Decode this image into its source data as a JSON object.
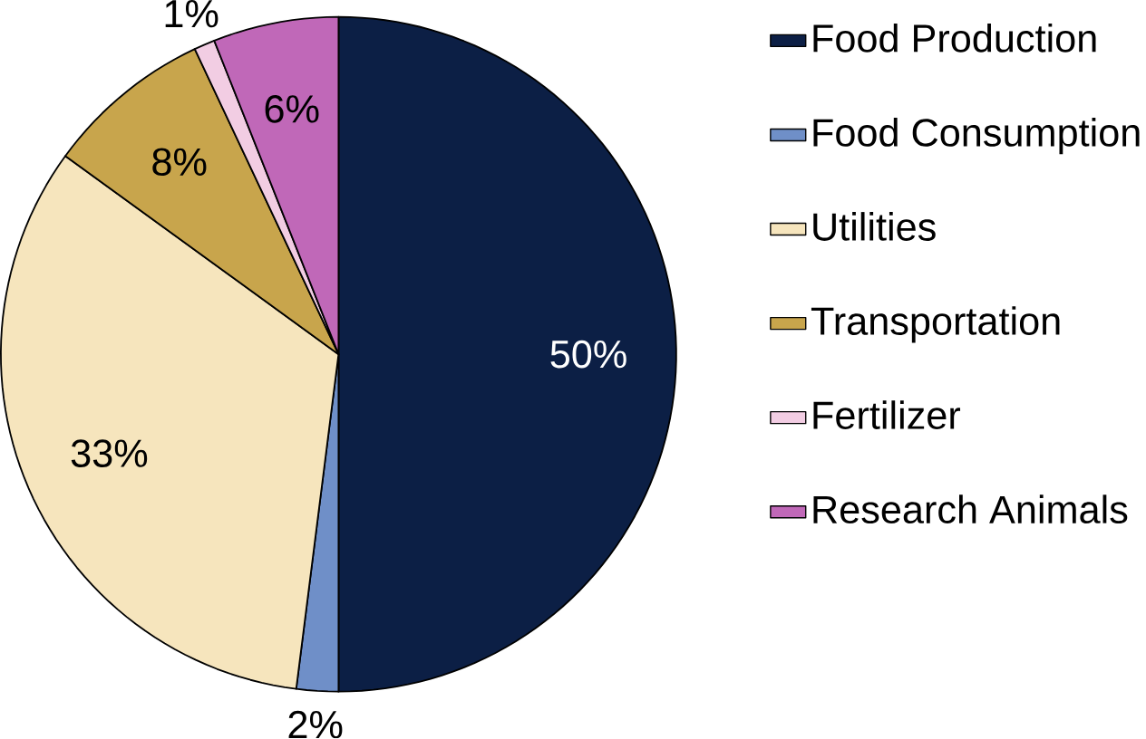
{
  "chart_data": {
    "type": "pie",
    "categories": [
      "Food Production",
      "Food Consumption",
      "Utilities",
      "Transportation",
      "Fertilizer",
      "Research Animals"
    ],
    "values": [
      50,
      2,
      33,
      8,
      1,
      6
    ],
    "colors": [
      "#0c1f45",
      "#6f8fc8",
      "#f6e5bd",
      "#c8a54c",
      "#f2cde3",
      "#c068b8"
    ],
    "value_labels": [
      "50%",
      "2%",
      "33%",
      "8%",
      "1%",
      "6%"
    ],
    "legend": "right"
  }
}
